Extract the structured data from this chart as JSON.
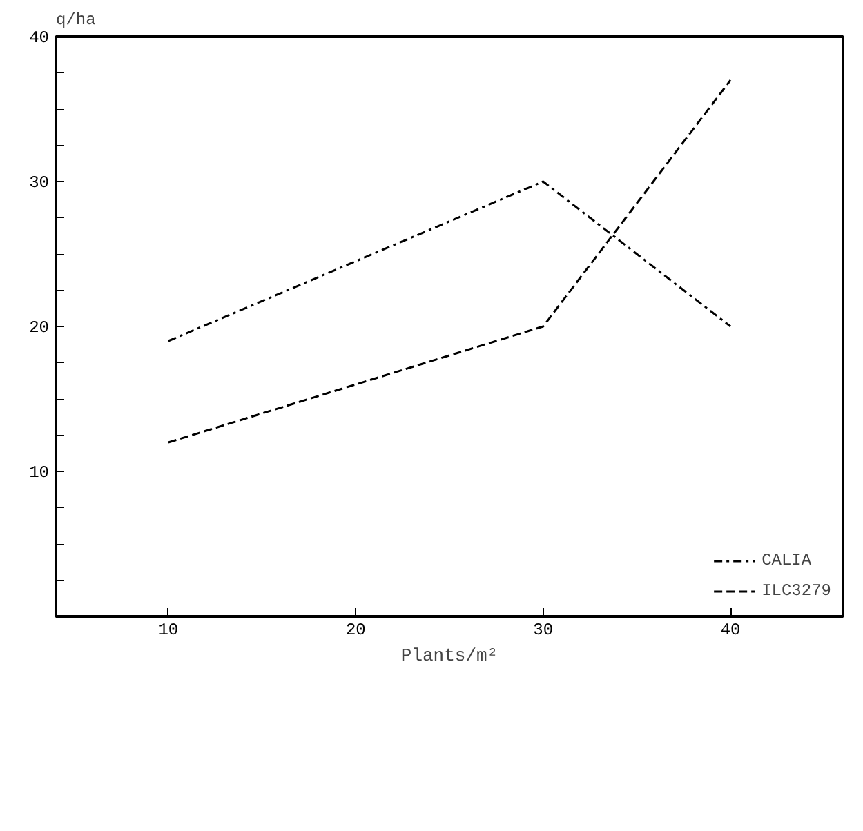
{
  "chart_data": {
    "type": "line",
    "xlabel": "Plants/m²",
    "ylabel": "q/ha",
    "x": [
      10,
      30,
      40
    ],
    "series": [
      {
        "name": "CALIA",
        "color": "#000000",
        "line_style": "dashdot",
        "values": [
          19,
          30,
          20
        ]
      },
      {
        "name": "ILC3279",
        "color": "#000000",
        "line_style": "dashed",
        "values": [
          12,
          20,
          37
        ]
      }
    ],
    "xlim": [
      4,
      46
    ],
    "ylim": [
      0,
      40
    ],
    "xticks": [
      10,
      20,
      30,
      40
    ],
    "yticks": [
      {
        "value": 2.5,
        "label": null
      },
      {
        "value": 5,
        "label": null
      },
      {
        "value": 7.5,
        "label": null
      },
      10,
      {
        "value": 12.5,
        "label": null
      },
      {
        "value": 15,
        "label": null
      },
      {
        "value": 17.5,
        "label": null
      },
      20,
      {
        "value": 22.5,
        "label": null
      },
      {
        "value": 25,
        "label": null
      },
      {
        "value": 27.5,
        "label": null
      },
      30,
      {
        "value": 32.5,
        "label": null
      },
      {
        "value": 35,
        "label": null
      },
      {
        "value": 37.5,
        "label": null
      },
      40
    ],
    "grid": false,
    "legend": "bottom right",
    "marker": "none"
  }
}
